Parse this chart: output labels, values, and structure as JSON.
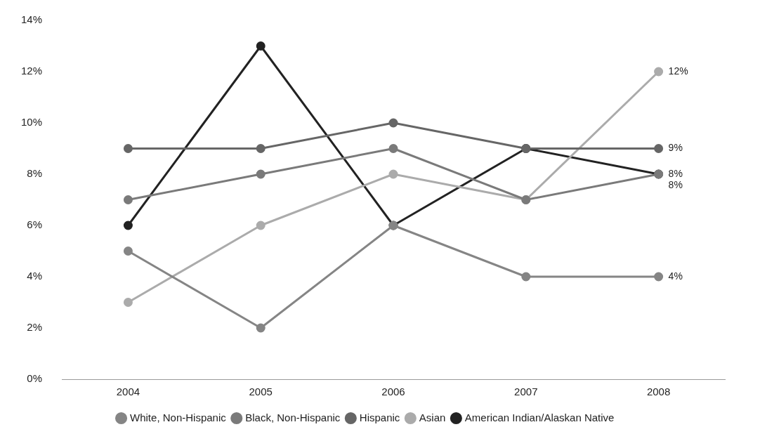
{
  "chart_data": {
    "type": "line",
    "categories": [
      "2004",
      "2005",
      "2006",
      "2007",
      "2008"
    ],
    "series": [
      {
        "name": "White, Non-Hispanic",
        "color": "#858585",
        "values": [
          5,
          2,
          6,
          4,
          4
        ],
        "value_labels": [
          null,
          null,
          null,
          null,
          "4%"
        ]
      },
      {
        "name": "Black, Non-Hispanic",
        "color": "#7a7a7a",
        "values": [
          7,
          8,
          9,
          7,
          8
        ],
        "value_labels": [
          null,
          null,
          null,
          null,
          "8%"
        ]
      },
      {
        "name": "Hispanic",
        "color": "#666666",
        "values": [
          9,
          9,
          10,
          9,
          9
        ],
        "value_labels": [
          null,
          null,
          null,
          null,
          "9%"
        ]
      },
      {
        "name": "Asian",
        "color": "#ababab",
        "values": [
          3,
          6,
          8,
          7,
          12
        ],
        "value_labels": [
          null,
          null,
          null,
          null,
          "12%"
        ]
      },
      {
        "name": "American Indian/Alaskan Native",
        "color": "#222222",
        "values": [
          6,
          13,
          6,
          9,
          8
        ],
        "value_labels": [
          null,
          null,
          null,
          null,
          "8%"
        ]
      }
    ],
    "ylim": [
      0,
      14
    ],
    "yticks": [
      {
        "value": 0,
        "label": "0%"
      },
      {
        "value": 2,
        "label": "2%"
      },
      {
        "value": 4,
        "label": "4%"
      },
      {
        "value": 6,
        "label": "6%"
      },
      {
        "value": 8,
        "label": "8%"
      },
      {
        "value": 10,
        "label": "10%"
      },
      {
        "value": 12,
        "label": "12%"
      },
      {
        "value": 14,
        "label": "14%"
      }
    ],
    "grid": false,
    "legend": "bottom",
    "marker": "circle",
    "line_style": "solid"
  }
}
